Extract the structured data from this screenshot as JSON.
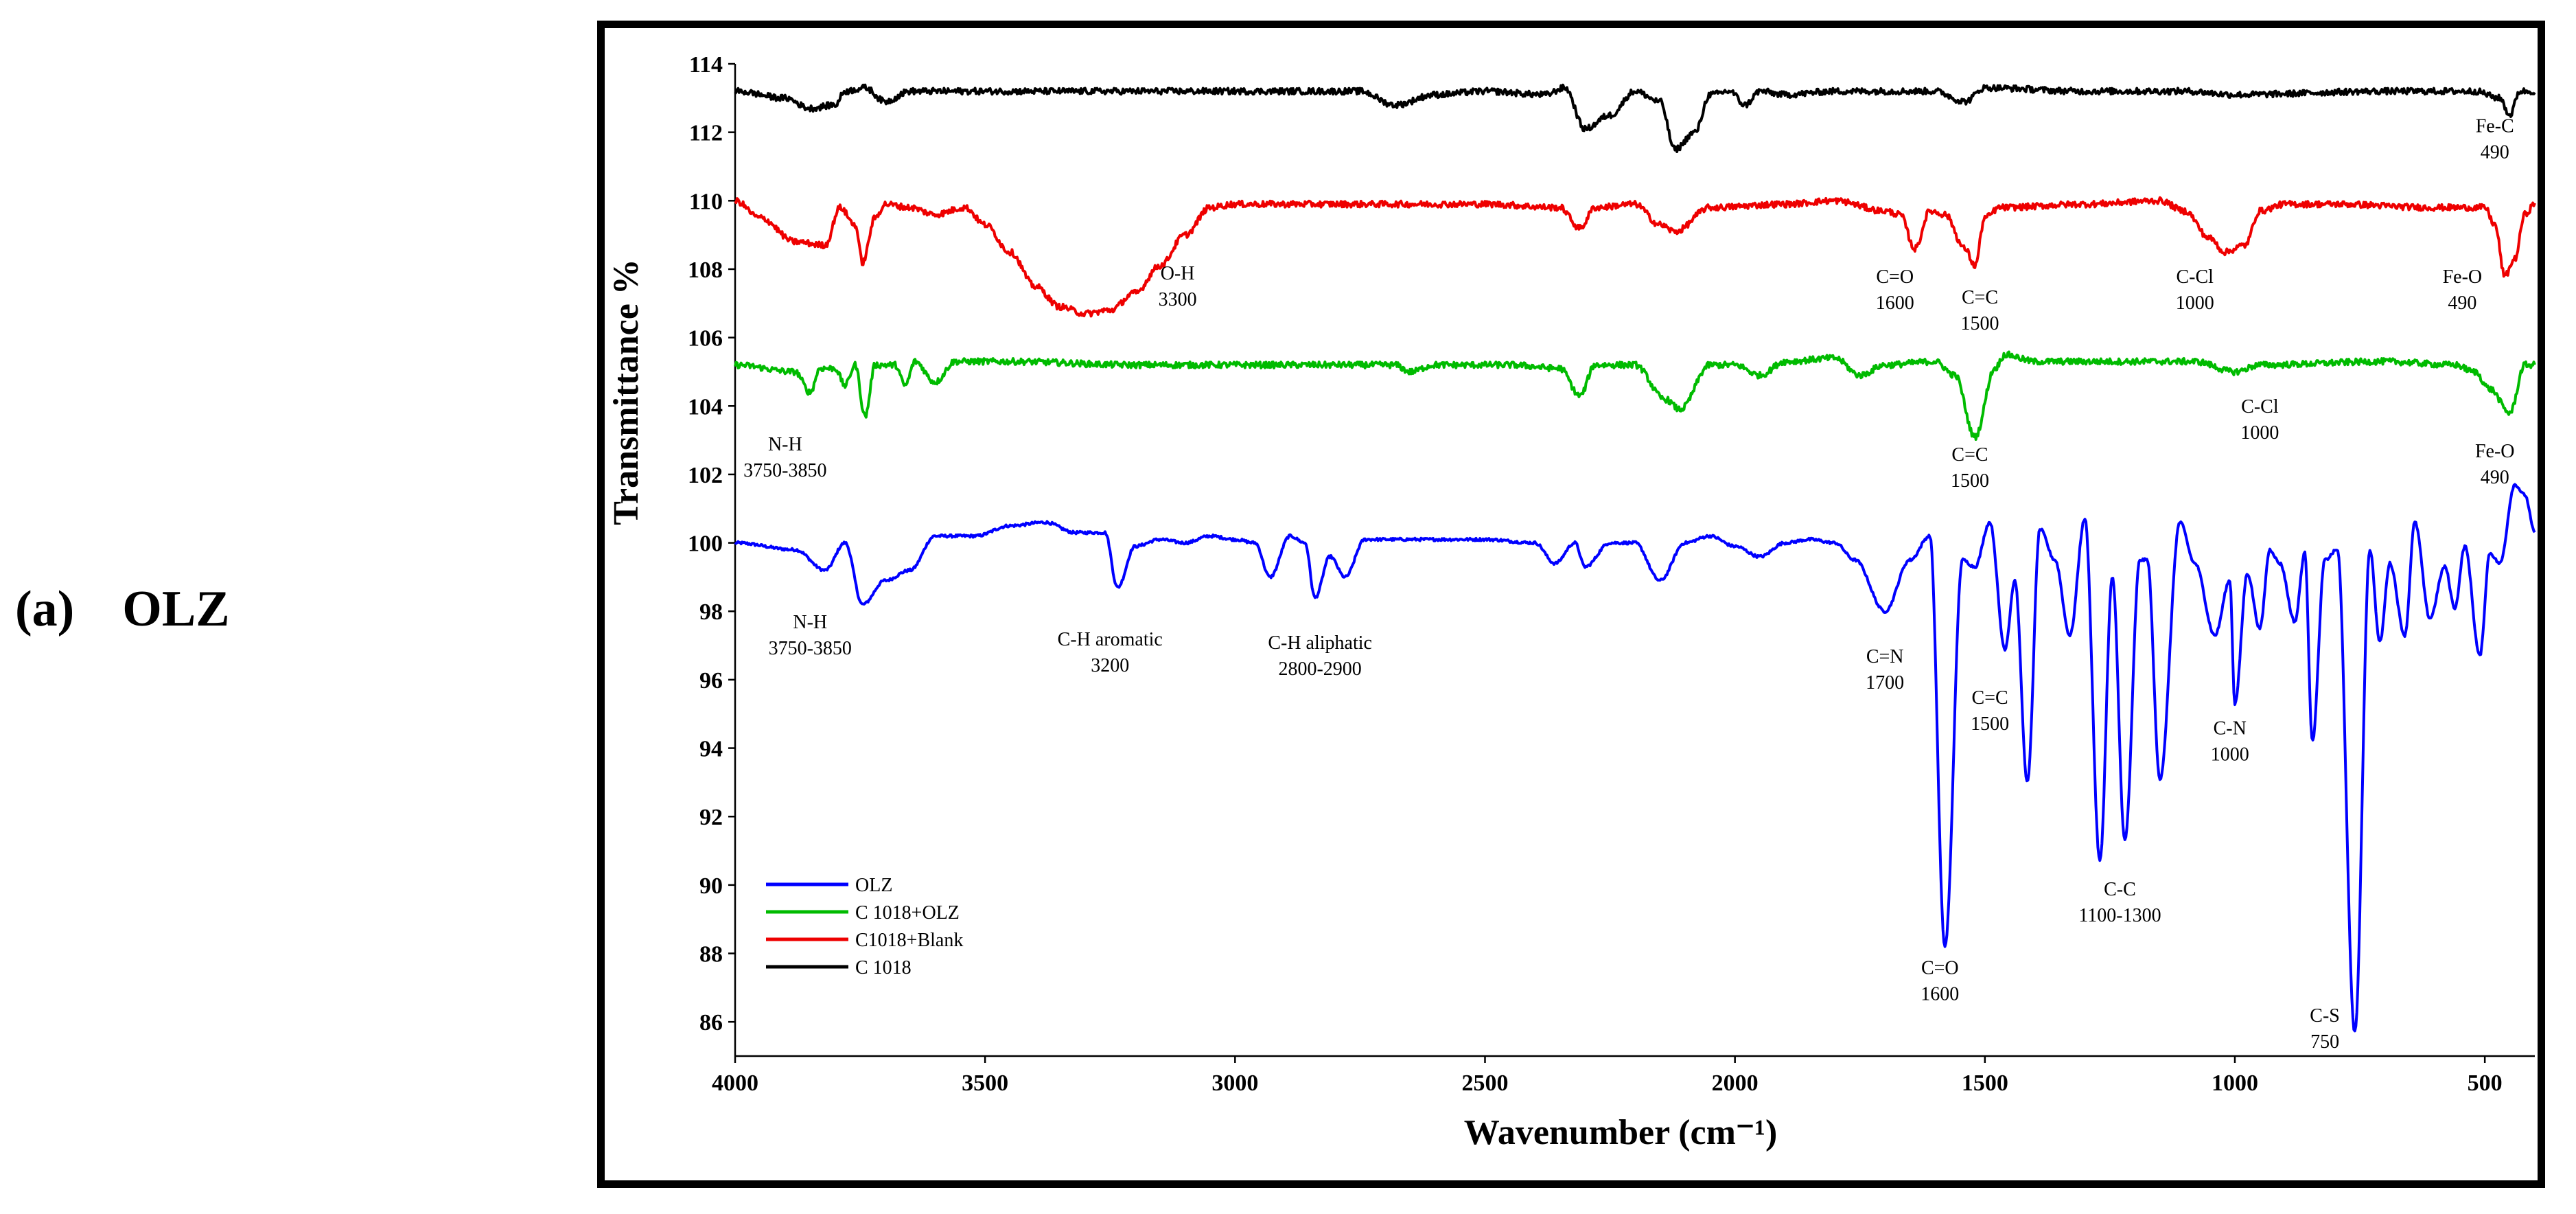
{
  "caption": {
    "letter": "(a)",
    "name": "OLZ"
  },
  "chart_data": {
    "type": "line",
    "xlabel": "Wavenumber (cm⁻¹)",
    "ylabel": "Transmittance %",
    "xlim": [
      4000,
      400
    ],
    "ylim": [
      85,
      114
    ],
    "x_ticks": [
      4000,
      3500,
      3000,
      2500,
      2000,
      1500,
      1000,
      500
    ],
    "y_ticks": [
      86,
      88,
      90,
      92,
      94,
      96,
      98,
      100,
      102,
      104,
      106,
      108,
      110,
      112,
      114
    ],
    "legend_position": "lower-left",
    "series": [
      {
        "name": "OLZ",
        "color": "#0000ff",
        "baseline": 100,
        "start": 100.0,
        "end": 100.3,
        "points": [
          [
            4000,
            100.0
          ],
          [
            3880,
            99.8
          ],
          [
            3820,
            99.2
          ],
          [
            3780,
            100.0
          ],
          [
            3745,
            98.2
          ],
          [
            3700,
            98.9
          ],
          [
            3650,
            99.2
          ],
          [
            3600,
            100.2
          ],
          [
            3520,
            100.2
          ],
          [
            3450,
            100.5
          ],
          [
            3380,
            100.6
          ],
          [
            3320,
            100.3
          ],
          [
            3260,
            100.3
          ],
          [
            3235,
            98.7
          ],
          [
            3200,
            99.9
          ],
          [
            3150,
            100.1
          ],
          [
            3100,
            100.0
          ],
          [
            3050,
            100.2
          ],
          [
            3000,
            100.1
          ],
          [
            2960,
            100.0
          ],
          [
            2930,
            99.0
          ],
          [
            2890,
            100.2
          ],
          [
            2860,
            100.0
          ],
          [
            2840,
            98.4
          ],
          [
            2810,
            99.6
          ],
          [
            2780,
            99.0
          ],
          [
            2740,
            100.1
          ],
          [
            2600,
            100.1
          ],
          [
            2500,
            100.1
          ],
          [
            2400,
            100.0
          ],
          [
            2360,
            99.4
          ],
          [
            2320,
            100.0
          ],
          [
            2300,
            99.3
          ],
          [
            2250,
            100.0
          ],
          [
            2200,
            100.0
          ],
          [
            2150,
            98.9
          ],
          [
            2100,
            100.0
          ],
          [
            2050,
            100.2
          ],
          [
            2000,
            99.9
          ],
          [
            1950,
            99.6
          ],
          [
            1900,
            100.0
          ],
          [
            1850,
            100.1
          ],
          [
            1800,
            100.0
          ],
          [
            1760,
            99.5
          ],
          [
            1700,
            98.0
          ],
          [
            1650,
            99.5
          ],
          [
            1610,
            100.2
          ],
          [
            1580,
            88.2
          ],
          [
            1545,
            99.5
          ],
          [
            1520,
            99.3
          ],
          [
            1490,
            100.6
          ],
          [
            1460,
            96.9
          ],
          [
            1440,
            98.9
          ],
          [
            1415,
            93.0
          ],
          [
            1390,
            100.4
          ],
          [
            1360,
            99.5
          ],
          [
            1330,
            97.3
          ],
          [
            1300,
            100.7
          ],
          [
            1270,
            90.7
          ],
          [
            1245,
            99.0
          ],
          [
            1220,
            91.3
          ],
          [
            1190,
            99.5
          ],
          [
            1175,
            99.5
          ],
          [
            1150,
            93.1
          ],
          [
            1110,
            100.6
          ],
          [
            1080,
            99.4
          ],
          [
            1040,
            97.3
          ],
          [
            1010,
            98.9
          ],
          [
            1000,
            95.3
          ],
          [
            975,
            99.1
          ],
          [
            950,
            97.5
          ],
          [
            930,
            99.8
          ],
          [
            910,
            99.4
          ],
          [
            880,
            97.7
          ],
          [
            860,
            99.7
          ],
          [
            845,
            94.2
          ],
          [
            820,
            99.5
          ],
          [
            795,
            99.8
          ],
          [
            760,
            85.7
          ],
          [
            730,
            99.8
          ],
          [
            710,
            97.1
          ],
          [
            690,
            99.4
          ],
          [
            660,
            97.3
          ],
          [
            640,
            100.6
          ],
          [
            610,
            97.8
          ],
          [
            580,
            99.3
          ],
          [
            560,
            98.1
          ],
          [
            540,
            99.9
          ],
          [
            510,
            96.7
          ],
          [
            490,
            99.7
          ],
          [
            470,
            99.4
          ],
          [
            440,
            101.7
          ],
          [
            420,
            101.4
          ],
          [
            400,
            100.3
          ]
        ]
      },
      {
        "name": "C 1018+OLZ",
        "color": "#00bb00",
        "baseline": 105.25,
        "start": 105.2,
        "end": 105.2,
        "points": [
          [
            4000,
            105.2
          ],
          [
            3880,
            105.0
          ],
          [
            3850,
            104.4
          ],
          [
            3830,
            105.1
          ],
          [
            3800,
            105.1
          ],
          [
            3780,
            104.6
          ],
          [
            3760,
            105.2
          ],
          [
            3740,
            103.7
          ],
          [
            3720,
            105.2
          ],
          [
            3680,
            105.2
          ],
          [
            3660,
            104.6
          ],
          [
            3640,
            105.3
          ],
          [
            3600,
            104.7
          ],
          [
            3560,
            105.3
          ],
          [
            3450,
            105.3
          ],
          [
            3200,
            105.2
          ],
          [
            3000,
            105.2
          ],
          [
            2680,
            105.2
          ],
          [
            2650,
            105.0
          ],
          [
            2600,
            105.2
          ],
          [
            2450,
            105.2
          ],
          [
            2350,
            105.1
          ],
          [
            2310,
            104.3
          ],
          [
            2280,
            105.2
          ],
          [
            2200,
            105.2
          ],
          [
            2140,
            104.2
          ],
          [
            2110,
            103.9
          ],
          [
            2050,
            105.2
          ],
          [
            2000,
            105.2
          ],
          [
            1950,
            104.9
          ],
          [
            1900,
            105.3
          ],
          [
            1800,
            105.4
          ],
          [
            1750,
            104.9
          ],
          [
            1700,
            105.2
          ],
          [
            1600,
            105.3
          ],
          [
            1560,
            104.9
          ],
          [
            1520,
            103.1
          ],
          [
            1480,
            105.1
          ],
          [
            1460,
            105.5
          ],
          [
            1400,
            105.3
          ],
          [
            1200,
            105.3
          ],
          [
            1080,
            105.3
          ],
          [
            1000,
            105.0
          ],
          [
            950,
            105.2
          ],
          [
            700,
            105.3
          ],
          [
            560,
            105.2
          ],
          [
            520,
            105.0
          ],
          [
            490,
            104.5
          ],
          [
            450,
            103.8
          ],
          [
            420,
            105.2
          ],
          [
            400,
            105.2
          ]
        ]
      },
      {
        "name": "C1018+Blank",
        "color": "#ee0000",
        "baseline": 109.85,
        "start": 110.0,
        "end": 109.9,
        "points": [
          [
            4000,
            110.0
          ],
          [
            3950,
            109.5
          ],
          [
            3880,
            108.8
          ],
          [
            3820,
            108.7
          ],
          [
            3790,
            109.8
          ],
          [
            3760,
            109.3
          ],
          [
            3745,
            108.2
          ],
          [
            3720,
            109.5
          ],
          [
            3700,
            109.9
          ],
          [
            3650,
            109.8
          ],
          [
            3600,
            109.6
          ],
          [
            3540,
            109.8
          ],
          [
            3500,
            109.3
          ],
          [
            3450,
            108.5
          ],
          [
            3400,
            107.5
          ],
          [
            3350,
            106.9
          ],
          [
            3300,
            106.7
          ],
          [
            3250,
            106.8
          ],
          [
            3200,
            107.3
          ],
          [
            3150,
            108.1
          ],
          [
            3100,
            109.0
          ],
          [
            3050,
            109.8
          ],
          [
            3000,
            109.9
          ],
          [
            2500,
            109.9
          ],
          [
            2350,
            109.8
          ],
          [
            2310,
            109.2
          ],
          [
            2280,
            109.8
          ],
          [
            2200,
            109.9
          ],
          [
            2150,
            109.3
          ],
          [
            2120,
            109.1
          ],
          [
            2050,
            109.8
          ],
          [
            1900,
            109.9
          ],
          [
            1800,
            110.0
          ],
          [
            1700,
            109.7
          ],
          [
            1670,
            109.6
          ],
          [
            1640,
            108.6
          ],
          [
            1610,
            109.7
          ],
          [
            1580,
            109.6
          ],
          [
            1540,
            108.6
          ],
          [
            1520,
            108.1
          ],
          [
            1500,
            109.5
          ],
          [
            1470,
            109.8
          ],
          [
            1300,
            109.9
          ],
          [
            1150,
            110.0
          ],
          [
            1100,
            109.7
          ],
          [
            1050,
            108.9
          ],
          [
            1020,
            108.5
          ],
          [
            980,
            108.7
          ],
          [
            950,
            109.7
          ],
          [
            900,
            109.9
          ],
          [
            800,
            109.9
          ],
          [
            600,
            109.8
          ],
          [
            500,
            109.8
          ],
          [
            480,
            109.3
          ],
          [
            460,
            107.8
          ],
          [
            440,
            108.3
          ],
          [
            420,
            109.6
          ],
          [
            400,
            109.9
          ]
        ]
      },
      {
        "name": "C 1018",
        "color": "#000000",
        "baseline": 113.2,
        "start": 113.2,
        "end": 113.2,
        "points": [
          [
            4000,
            113.2
          ],
          [
            3900,
            113.0
          ],
          [
            3850,
            112.7
          ],
          [
            3800,
            112.8
          ],
          [
            3780,
            113.2
          ],
          [
            3740,
            113.3
          ],
          [
            3700,
            112.9
          ],
          [
            3650,
            113.2
          ],
          [
            3600,
            113.2
          ],
          [
            3400,
            113.2
          ],
          [
            3000,
            113.2
          ],
          [
            2750,
            113.2
          ],
          [
            2680,
            112.8
          ],
          [
            2600,
            113.1
          ],
          [
            2500,
            113.2
          ],
          [
            2380,
            113.1
          ],
          [
            2340,
            113.3
          ],
          [
            2300,
            112.1
          ],
          [
            2250,
            112.5
          ],
          [
            2200,
            113.2
          ],
          [
            2150,
            112.9
          ],
          [
            2120,
            111.5
          ],
          [
            2080,
            112.0
          ],
          [
            2050,
            113.1
          ],
          [
            2010,
            113.2
          ],
          [
            1980,
            112.8
          ],
          [
            1950,
            113.2
          ],
          [
            1900,
            113.1
          ],
          [
            1800,
            113.2
          ],
          [
            1600,
            113.2
          ],
          [
            1540,
            112.9
          ],
          [
            1500,
            113.3
          ],
          [
            1300,
            113.2
          ],
          [
            1100,
            113.2
          ],
          [
            1000,
            113.1
          ],
          [
            700,
            113.2
          ],
          [
            520,
            113.2
          ],
          [
            470,
            113.0
          ],
          [
            450,
            112.5
          ],
          [
            430,
            113.2
          ],
          [
            400,
            113.2
          ]
        ]
      }
    ],
    "annotations": [
      {
        "id": "fe-c-490-black",
        "lines": [
          "Fe-C",
          "490"
        ],
        "x": 480,
        "y": 112.0,
        "anchor": "middle"
      },
      {
        "id": "oh-3300",
        "lines": [
          "O-H",
          "3300"
        ],
        "x": 3115,
        "y": 107.7,
        "anchor": "middle"
      },
      {
        "id": "co-1600-red",
        "lines": [
          "C=O",
          "1600"
        ],
        "x": 1680,
        "y": 107.6,
        "anchor": "middle"
      },
      {
        "id": "cc-1500-red",
        "lines": [
          "C=C",
          "1500"
        ],
        "x": 1510,
        "y": 107.0,
        "anchor": "middle"
      },
      {
        "id": "ccl-1000-red",
        "lines": [
          "C-Cl",
          "1000"
        ],
        "x": 1080,
        "y": 107.6,
        "anchor": "middle"
      },
      {
        "id": "feo-490-red",
        "lines": [
          "Fe-O",
          "490"
        ],
        "x": 545,
        "y": 107.6,
        "anchor": "middle"
      },
      {
        "id": "nh-green",
        "lines": [
          "N-H",
          "3750-3850"
        ],
        "x": 3900,
        "y": 102.7,
        "anchor": "middle"
      },
      {
        "id": "cc-1500-green",
        "lines": [
          "C=C",
          "1500"
        ],
        "x": 1530,
        "y": 102.4,
        "anchor": "middle"
      },
      {
        "id": "ccl-1000-green",
        "lines": [
          "C-Cl",
          "1000"
        ],
        "x": 950,
        "y": 103.8,
        "anchor": "middle"
      },
      {
        "id": "feo-490-green",
        "lines": [
          "Fe-O",
          "490"
        ],
        "x": 480,
        "y": 102.5,
        "anchor": "middle"
      },
      {
        "id": "nh-blue",
        "lines": [
          "N-H",
          "3750-3850"
        ],
        "x": 3850,
        "y": 97.5,
        "anchor": "middle"
      },
      {
        "id": "ch-aromatic",
        "lines": [
          "C-H aromatic",
          "3200"
        ],
        "x": 3250,
        "y": 97.0,
        "anchor": "middle"
      },
      {
        "id": "ch-aliphatic",
        "lines": [
          "C-H aliphatic",
          "2800-2900"
        ],
        "x": 2830,
        "y": 96.9,
        "anchor": "middle"
      },
      {
        "id": "cn-1700",
        "lines": [
          "C=N",
          "1700"
        ],
        "x": 1700,
        "y": 96.5,
        "anchor": "middle"
      },
      {
        "id": "cc-1500-blue",
        "lines": [
          "C=C",
          "1500"
        ],
        "x": 1490,
        "y": 95.3,
        "anchor": "middle"
      },
      {
        "id": "c-n-1000",
        "lines": [
          "C-N",
          "1000"
        ],
        "x": 1010,
        "y": 94.4,
        "anchor": "middle"
      },
      {
        "id": "cc-1100-1300",
        "lines": [
          "C-C",
          "1100-1300"
        ],
        "x": 1230,
        "y": 89.7,
        "anchor": "middle"
      },
      {
        "id": "co-1600-blue",
        "lines": [
          "C=O",
          "1600"
        ],
        "x": 1590,
        "y": 87.4,
        "anchor": "middle"
      },
      {
        "id": "cs-750",
        "lines": [
          "C-S",
          "750"
        ],
        "x": 820,
        "y": 86.0,
        "anchor": "middle"
      }
    ]
  }
}
